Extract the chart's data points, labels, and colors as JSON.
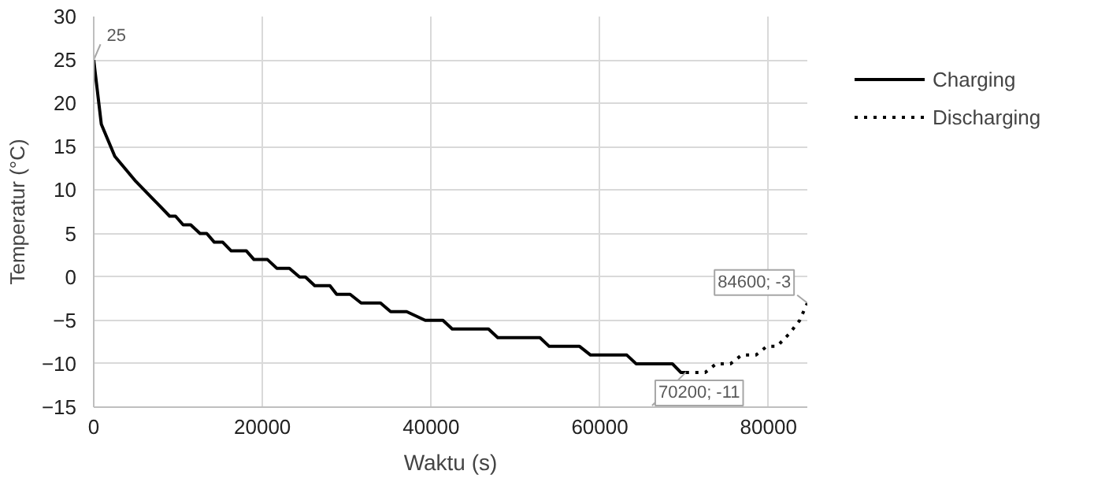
{
  "chart_data": {
    "type": "line",
    "xlabel": "Waktu (s)",
    "ylabel": "Temperatur (°C)",
    "xlim": [
      0,
      84600
    ],
    "ylim": [
      -15,
      30
    ],
    "xticks": [
      0,
      20000,
      40000,
      60000,
      80000
    ],
    "yticks": [
      -15,
      -10,
      -5,
      0,
      5,
      10,
      15,
      20,
      25,
      30
    ],
    "grid": true,
    "legend": "right",
    "series": [
      {
        "name": "Charging",
        "color": "#000000",
        "line_style": "solid",
        "x": [
          0,
          900,
          2500,
          5000,
          7500,
          9000,
          9700,
          10600,
          11500,
          12600,
          13400,
          14300,
          15300,
          16300,
          18100,
          19000,
          20600,
          21700,
          23200,
          24400,
          25100,
          26200,
          28000,
          28800,
          30400,
          31700,
          34000,
          35200,
          37100,
          39300,
          41400,
          42500,
          46800,
          47900,
          52900,
          54000,
          57600,
          58900,
          63200,
          64300,
          68600,
          69600,
          70200
        ],
        "values": [
          25,
          17.6,
          13.9,
          11,
          8.5,
          7,
          7,
          6,
          6,
          5,
          5,
          4,
          4,
          3,
          3,
          2,
          2,
          1,
          1,
          0,
          0,
          -1,
          -1,
          -2,
          -2,
          -3,
          -3,
          -4,
          -4,
          -5,
          -5,
          -6,
          -6,
          -7,
          -7,
          -8,
          -8,
          -9,
          -9,
          -10,
          -10,
          -11,
          -11
        ]
      },
      {
        "name": "Discharging",
        "color": "#000000",
        "line_style": "dotted",
        "x": [
          70200,
          72500,
          73800,
          75500,
          76800,
          78500,
          79800,
          81000,
          82500,
          83700,
          84600
        ],
        "values": [
          -11,
          -11,
          -10,
          -10,
          -9,
          -9,
          -8,
          -8,
          -6.5,
          -5,
          -3
        ]
      }
    ],
    "annotations": [
      {
        "text": "25",
        "x": 0,
        "y": 25
      },
      {
        "text": "70200; -11",
        "x": 70200,
        "y": -11
      },
      {
        "text": "84600; -3",
        "x": 84600,
        "y": -3
      }
    ]
  }
}
